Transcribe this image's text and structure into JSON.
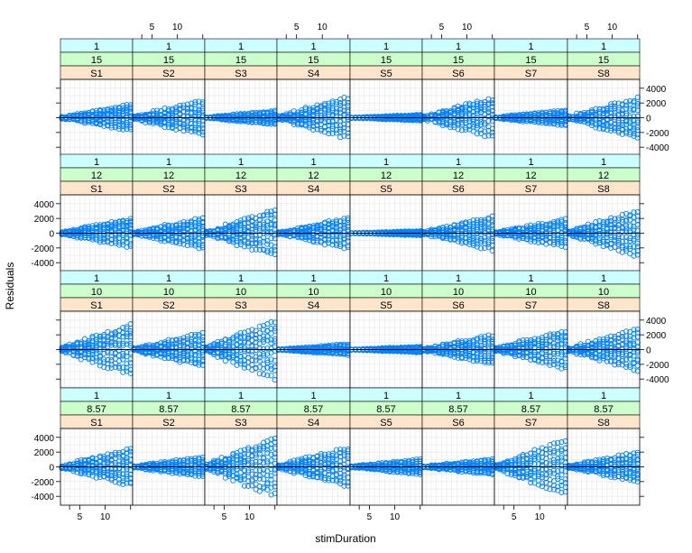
{
  "chart_data": {
    "type": "scatter",
    "xlabel": "stimDuration",
    "ylabel": "Residuals",
    "x_ticks": [
      5,
      10
    ],
    "y_ticks": [
      -4000,
      -2000,
      0,
      2000,
      4000
    ],
    "xlim": [
      1.2,
      15.4
    ],
    "ylim": [
      -5200,
      5200
    ],
    "grid": true,
    "reference_line_y": 0,
    "point_color": "#0080ff",
    "strip_colors": [
      "#ccffff",
      "#ccffcc",
      "#ffe5cc"
    ],
    "subjects": [
      "S1",
      "S2",
      "S3",
      "S4",
      "S5",
      "S6",
      "S7",
      "S8"
    ],
    "panel_rows": [
      {
        "strip1": "1",
        "strip2": "15",
        "spreads": [
          1700,
          2300,
          900,
          2700,
          400,
          2600,
          1000,
          2600
        ],
        "skews": [
          0.3,
          0.0,
          0.0,
          0.2,
          0.0,
          0.5,
          0.0,
          -0.2
        ]
      },
      {
        "strip1": "1",
        "strip2": "12",
        "spreads": [
          1900,
          2000,
          3000,
          2000,
          300,
          2200,
          1800,
          3000
        ],
        "skews": [
          0.6,
          0.2,
          0.3,
          0.3,
          0.0,
          0.3,
          0.3,
          0.0
        ]
      },
      {
        "strip1": "1",
        "strip2": "10",
        "spreads": [
          3300,
          2200,
          3800,
          700,
          400,
          1900,
          2500,
          2700
        ],
        "skews": [
          0.3,
          0.0,
          0.2,
          0.0,
          0.0,
          0.0,
          0.2,
          0.0
        ]
      },
      {
        "strip1": "1",
        "strip2": "8.57",
        "spreads": [
          2400,
          1300,
          3800,
          2500,
          1000,
          1000,
          3500,
          1900
        ],
        "skews": [
          0.0,
          0.0,
          0.3,
          0.0,
          0.0,
          0.0,
          0.0,
          0.0
        ]
      }
    ]
  }
}
